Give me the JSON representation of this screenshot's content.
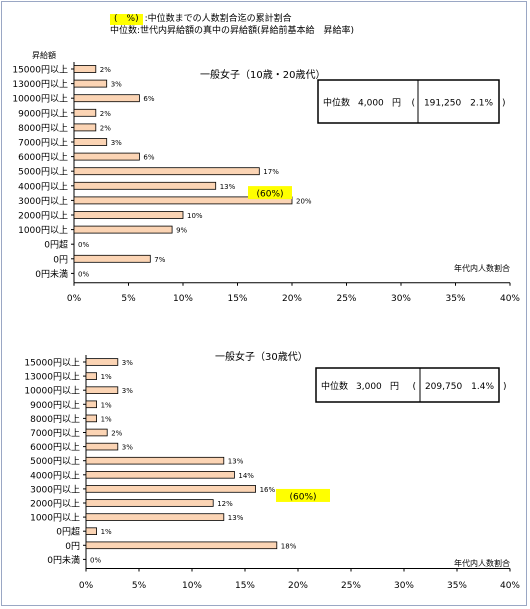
{
  "legend": {
    "line1_swatch": "(　%)",
    "line1_text": ":中位数までの人数割合迄の累計割合",
    "line2_label": "中位数",
    "line2_text": ":世代内昇給額の真中の昇給額(昇給前基本給　昇給率)"
  },
  "colors": {
    "bar": "#fbd4b4",
    "bar_stroke": "#000000",
    "highlight": "#ffff00"
  },
  "chart_data": [
    {
      "type": "bar",
      "orientation": "horizontal",
      "title": "一般女子（10歳・20歳代）",
      "ylabel": "昇給額",
      "xlabel": "年代内人数割合",
      "xlim": [
        0,
        40
      ],
      "xticks": [
        "0%",
        "5%",
        "10%",
        "15%",
        "20%",
        "25%",
        "30%",
        "35%",
        "40%"
      ],
      "categories": [
        "15000円以上",
        "13000円以上",
        "10000円以上",
        "9000円以上",
        "8000円以上",
        "7000円以上",
        "6000円以上",
        "5000円以上",
        "4000円以上",
        "3000円以上",
        "2000円以上",
        "1000円以上",
        "0円超",
        "0円",
        "0円未満"
      ],
      "values": [
        2,
        3,
        6,
        2,
        2,
        3,
        6,
        17,
        13,
        20,
        10,
        9,
        0,
        7,
        0
      ],
      "value_labels": [
        "2%",
        "3%",
        "6%",
        "2%",
        "2%",
        "3%",
        "6%",
        "17%",
        "13%",
        "20%",
        "10%",
        "9%",
        "0%",
        "7%",
        "0%"
      ],
      "cumulative_label": "(60%)",
      "cumulative_category": "4000円以上",
      "median_box": {
        "label": "中位数",
        "amount": "4,000",
        "unit": "円",
        "detail": "(　191,250　2.1%　)"
      }
    },
    {
      "type": "bar",
      "orientation": "horizontal",
      "title": "一般女子（30歳代）",
      "xlabel": "年代内人数割合",
      "xlim": [
        0,
        40
      ],
      "xticks": [
        "0%",
        "5%",
        "10%",
        "15%",
        "20%",
        "25%",
        "30%",
        "35%",
        "40%"
      ],
      "categories": [
        "15000円以上",
        "13000円以上",
        "10000円以上",
        "9000円以上",
        "8000円以上",
        "7000円以上",
        "6000円以上",
        "5000円以上",
        "4000円以上",
        "3000円以上",
        "2000円以上",
        "1000円以上",
        "0円超",
        "0円",
        "0円未満"
      ],
      "values": [
        3,
        1,
        3,
        1,
        1,
        2,
        3,
        13,
        14,
        16,
        12,
        13,
        1,
        18,
        0
      ],
      "value_labels": [
        "3%",
        "1%",
        "3%",
        "1%",
        "1%",
        "2%",
        "3%",
        "13%",
        "14%",
        "16%",
        "12%",
        "13%",
        "1%",
        "18%",
        "0%"
      ],
      "cumulative_label": "(60%)",
      "cumulative_category": "3000円以上",
      "median_box": {
        "label": "中位数",
        "amount": "3,000",
        "unit": "円",
        "detail": "(　209,750　1.4%　)"
      }
    }
  ]
}
